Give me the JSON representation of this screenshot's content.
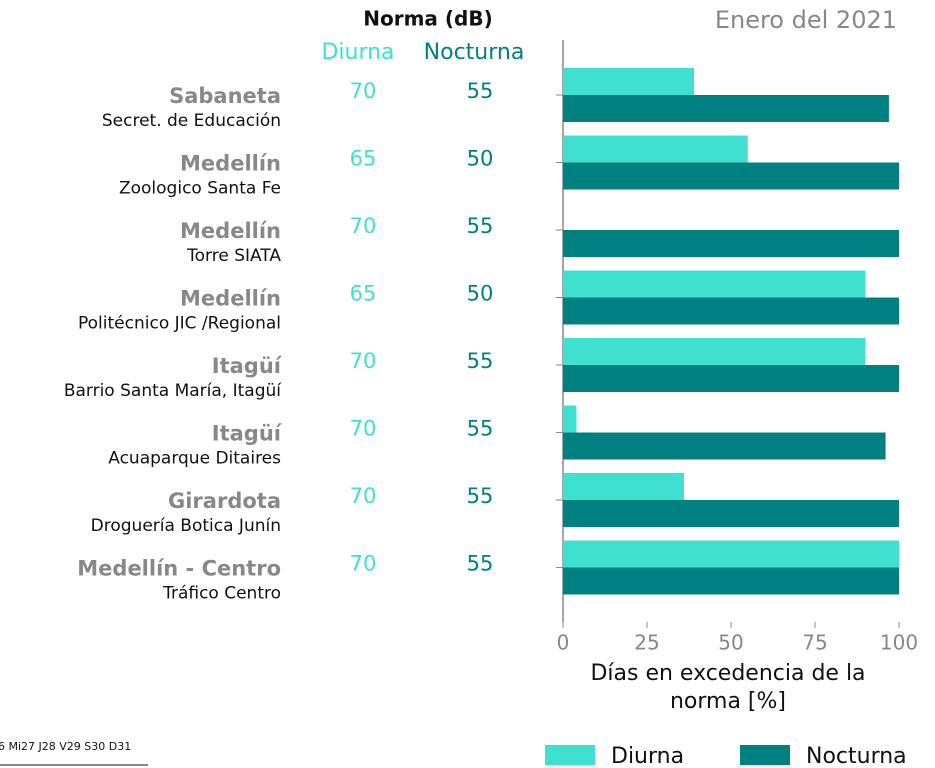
{
  "chart_data": {
    "type": "bar",
    "orientation": "horizontal",
    "title": "Enero del 2021",
    "norma_title": "Norma (dB)",
    "municipalities": [
      "Sabaneta",
      "Medellín",
      "Medellín",
      "Medellín",
      "Itagüí",
      "Itagüí",
      "Girardota",
      "Medellín - Centro"
    ],
    "categories": [
      "Secret. de Educación",
      "Zoologico Santa Fe",
      "Torre SIATA",
      "Politécnico JIC /Regional",
      "Barrio Santa María, Itagüí",
      "Acuaparque Ditaires",
      "Droguería Botica Junín",
      "Tráfico Centro"
    ],
    "norma_diurna": [
      70,
      65,
      70,
      65,
      70,
      70,
      70,
      70
    ],
    "norma_nocturna": [
      55,
      50,
      55,
      50,
      55,
      55,
      55,
      55
    ],
    "series": [
      {
        "name": "Diurna",
        "color": "#40e0d0",
        "values": [
          39,
          55,
          0,
          90,
          90,
          4,
          36,
          100
        ]
      },
      {
        "name": "Nocturna",
        "color": "#008080",
        "values": [
          97,
          100,
          100,
          100,
          100,
          96,
          100,
          100
        ]
      }
    ],
    "xlim": [
      0,
      100
    ],
    "xticks": [
      0,
      25,
      50,
      75,
      100
    ],
    "xlabel": "Días en excedencia de la norma [%]",
    "legend": "bottom-right",
    "footer_fragment": "6 Mi27 J28 V29 S30 D31"
  }
}
